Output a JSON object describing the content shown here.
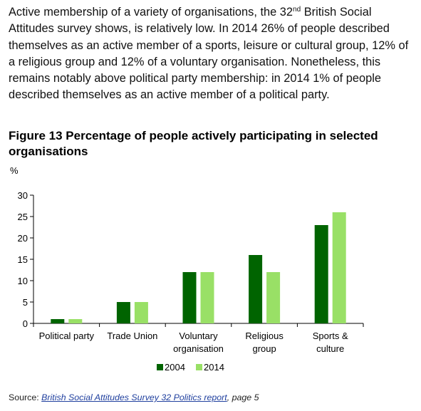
{
  "intro": {
    "part1": "Active membership of a variety of organisations, the 32",
    "sup": "nd",
    "part2": " British Social Attitudes survey shows, is relatively low. In 2014 26% of people described themselves as an active member of a sports, leisure or cultural group, 12% of a religious group and 12% of a voluntary organisation. Nonetheless, this remains notably above political party membership: in 2014 1% of people described themselves as an active member of a political party."
  },
  "figure_title": "Figure 13 Percentage of people actively participating in selected organisations",
  "source": {
    "prefix": "Source: ",
    "link_text": "British Social Attitudes Survey 32 Politics report",
    "suffix": ", page 5"
  },
  "chart_data": {
    "type": "bar",
    "ylabel": "%",
    "ylim": [
      0,
      30
    ],
    "yticks": [
      0,
      5,
      10,
      15,
      20,
      25,
      30
    ],
    "categories": [
      [
        "Political party"
      ],
      [
        "Trade Union"
      ],
      [
        "Voluntary",
        "organisation"
      ],
      [
        "Religious",
        "group"
      ],
      [
        "Sports &",
        "culture"
      ]
    ],
    "series": [
      {
        "name": "2004",
        "color": "#006400",
        "values": [
          1,
          5,
          12,
          16,
          23
        ]
      },
      {
        "name": "2014",
        "color": "#99e066",
        "values": [
          1,
          5,
          12,
          12,
          26
        ]
      }
    ],
    "legend_position": "bottom"
  }
}
